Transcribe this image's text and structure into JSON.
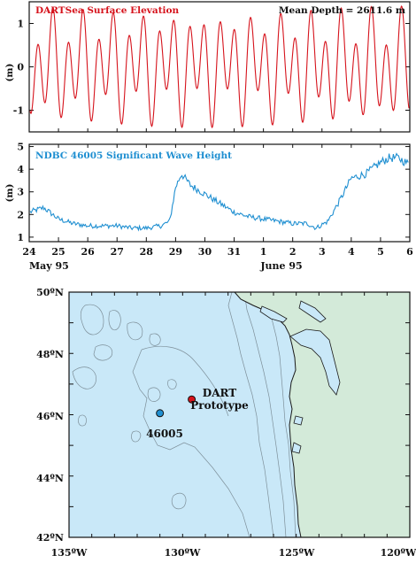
{
  "colors": {
    "dart_red": "#d6131c",
    "ndbc_blue": "#1f8fd1",
    "ocean": "#c9e8f8",
    "land": "#d3ead9",
    "coast": "#1a1a1a",
    "contour": "#7d8f99"
  },
  "chart_data": [
    {
      "type": "line",
      "title": "DARTSea Surface Elevation",
      "annotation": "Mean Depth = 2611.6 m",
      "ylabel": "(m)",
      "ylim": [
        -1.5,
        1.5
      ],
      "yticks": [
        "1",
        "0",
        "-1"
      ],
      "ytick_values": [
        1,
        0,
        -1
      ],
      "x_range_days": [
        24,
        37
      ],
      "series": [
        {
          "name": "",
          "color": "#d6131c",
          "model": "tide",
          "components": [
            {
              "amplitude_m": 0.95,
              "period_hours": 12.42
            },
            {
              "amplitude_m": 0.45,
              "period_hours": 23.93
            }
          ]
        }
      ]
    },
    {
      "type": "line",
      "title": "NDBC 46005 Significant Wave Height",
      "ylabel": "(m)",
      "ylim": [
        0.8,
        5.1
      ],
      "yticks": [
        "5",
        "4",
        "3",
        "2",
        "1"
      ],
      "ytick_values": [
        5,
        4,
        3,
        2,
        1
      ],
      "x_tick_labels": [
        "24",
        "25",
        "26",
        "27",
        "28",
        "29",
        "30",
        "31",
        "1",
        "2",
        "3",
        "4",
        "5",
        "6"
      ],
      "x_tick_days": [
        24,
        25,
        26,
        27,
        28,
        29,
        30,
        31,
        32,
        33,
        34,
        35,
        36,
        37
      ],
      "month_labels": [
        "May 95",
        "June 95"
      ],
      "series": [
        {
          "name": "",
          "color": "#1f8fd1",
          "x_days": [
            24,
            24.5,
            25,
            25.5,
            26,
            26.5,
            27,
            27.5,
            28,
            28.5,
            28.8,
            29.0,
            29.2,
            29.5,
            30.0,
            30.5,
            31.0,
            31.5,
            32.0,
            32.5,
            33.0,
            33.5,
            33.8,
            34.2,
            34.6,
            35.0,
            35.5,
            36.0,
            36.3,
            36.6,
            37.0
          ],
          "values": [
            2.1,
            2.3,
            1.8,
            1.6,
            1.5,
            1.5,
            1.5,
            1.4,
            1.4,
            1.5,
            1.7,
            3.2,
            3.8,
            3.3,
            2.9,
            2.5,
            2.1,
            1.9,
            1.8,
            1.7,
            1.6,
            1.6,
            1.4,
            1.7,
            2.6,
            3.6,
            3.8,
            4.3,
            4.5,
            4.5,
            4.2
          ]
        }
      ]
    }
  ],
  "map": {
    "lat_labels": [
      "50ºN",
      "48ºN",
      "46ºN",
      "44ºN",
      "42ºN"
    ],
    "lon_labels": [
      "135ºW",
      "130ºW",
      "125ºW",
      "120ºW"
    ],
    "stations": [
      {
        "name": "DART Prototype",
        "line1": "DART",
        "line2": "Prototype",
        "lon": -129.6,
        "lat": 46.5,
        "color": "#d6131c"
      },
      {
        "name": "46005",
        "line1": "46005",
        "lon": -131.0,
        "lat": 46.05,
        "color": "#1f8fd1"
      }
    ]
  }
}
